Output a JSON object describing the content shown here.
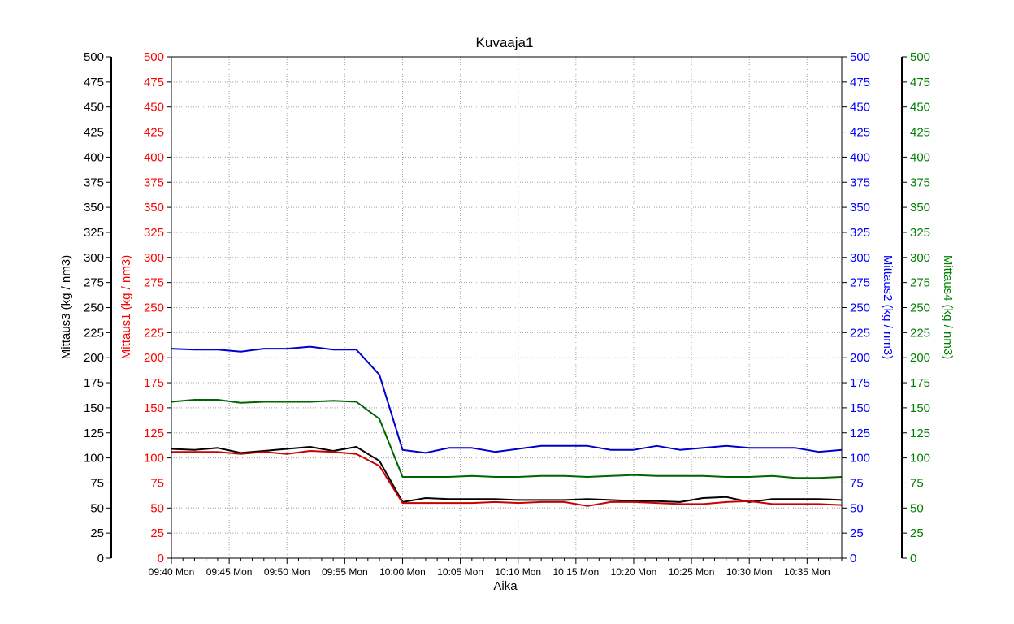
{
  "chart_data": {
    "type": "line",
    "title": "Kuvaaja1",
    "xlabel": "Aika",
    "x_ticks": [
      "09:40 Mon",
      "09:45 Mon",
      "09:50 Mon",
      "09:55 Mon",
      "10:00 Mon",
      "10:05 Mon",
      "10:10 Mon",
      "10:15 Mon",
      "10:20 Mon",
      "10:25 Mon",
      "10:30 Mon",
      "10:35 Mon"
    ],
    "x_minutes_range": [
      0,
      58
    ],
    "y_ticks": [
      0,
      25,
      50,
      75,
      100,
      125,
      150,
      175,
      200,
      225,
      250,
      275,
      300,
      325,
      350,
      375,
      400,
      425,
      450,
      475,
      500
    ],
    "grid": true,
    "axes": [
      {
        "side": "left-outer",
        "name": "Mittaus3",
        "unit": "(kg / nm3)",
        "color": "#000000",
        "ylim": [
          0,
          500
        ]
      },
      {
        "side": "left-inner",
        "name": "Mittaus1",
        "unit": "(kg / nm3)",
        "color": "#ff0000",
        "ylim": [
          0,
          500
        ]
      },
      {
        "side": "right-inner",
        "name": "Mittaus2",
        "unit": "(kg / nm3)",
        "color": "#0000ff",
        "ylim": [
          0,
          500
        ]
      },
      {
        "side": "right-outer",
        "name": "Mittaus4",
        "unit": "(kg / nm3)",
        "color": "#008000",
        "ylim": [
          0,
          500
        ]
      }
    ],
    "series": [
      {
        "name": "Mittaus2",
        "color": "#0000cc",
        "x": [
          0,
          2,
          4,
          6,
          8,
          10,
          12,
          14,
          16,
          18,
          20,
          22,
          24,
          26,
          28,
          30,
          32,
          34,
          36,
          38,
          40,
          42,
          44,
          46,
          48,
          50,
          52,
          54,
          56,
          58
        ],
        "y": [
          209,
          208,
          208,
          206,
          209,
          209,
          211,
          208,
          208,
          183,
          108,
          105,
          110,
          110,
          106,
          109,
          112,
          112,
          112,
          108,
          108,
          112,
          108,
          110,
          112,
          110,
          110,
          110,
          106,
          108
        ]
      },
      {
        "name": "Mittaus4",
        "color": "#006400",
        "x": [
          0,
          2,
          4,
          6,
          8,
          10,
          12,
          14,
          16,
          18,
          20,
          22,
          24,
          26,
          28,
          30,
          32,
          34,
          36,
          38,
          40,
          42,
          44,
          46,
          48,
          50,
          52,
          54,
          56,
          58
        ],
        "y": [
          156,
          158,
          158,
          155,
          156,
          156,
          156,
          157,
          156,
          139,
          81,
          81,
          81,
          82,
          81,
          81,
          82,
          82,
          81,
          82,
          83,
          82,
          82,
          82,
          81,
          81,
          82,
          80,
          80,
          81
        ]
      },
      {
        "name": "Mittaus3",
        "color": "#000000",
        "x": [
          0,
          2,
          4,
          6,
          8,
          10,
          12,
          14,
          16,
          18,
          20,
          22,
          24,
          26,
          28,
          30,
          32,
          34,
          36,
          38,
          40,
          42,
          44,
          46,
          48,
          50,
          52,
          54,
          56,
          58
        ],
        "y": [
          109,
          108,
          110,
          105,
          107,
          109,
          111,
          107,
          111,
          97,
          56,
          60,
          59,
          59,
          59,
          58,
          58,
          58,
          59,
          58,
          57,
          57,
          56,
          60,
          61,
          56,
          59,
          59,
          59,
          58
        ]
      },
      {
        "name": "Mittaus1",
        "color": "#cc0000",
        "x": [
          0,
          2,
          4,
          6,
          8,
          10,
          12,
          14,
          16,
          18,
          20,
          22,
          24,
          26,
          28,
          30,
          32,
          34,
          36,
          38,
          40,
          42,
          44,
          46,
          48,
          50,
          52,
          54,
          56,
          58
        ],
        "y": [
          106,
          106,
          106,
          104,
          106,
          104,
          107,
          106,
          104,
          92,
          55,
          55,
          55,
          55,
          56,
          55,
          56,
          56,
          52,
          56,
          56,
          55,
          54,
          54,
          56,
          57,
          54,
          54,
          54,
          53
        ]
      }
    ]
  }
}
